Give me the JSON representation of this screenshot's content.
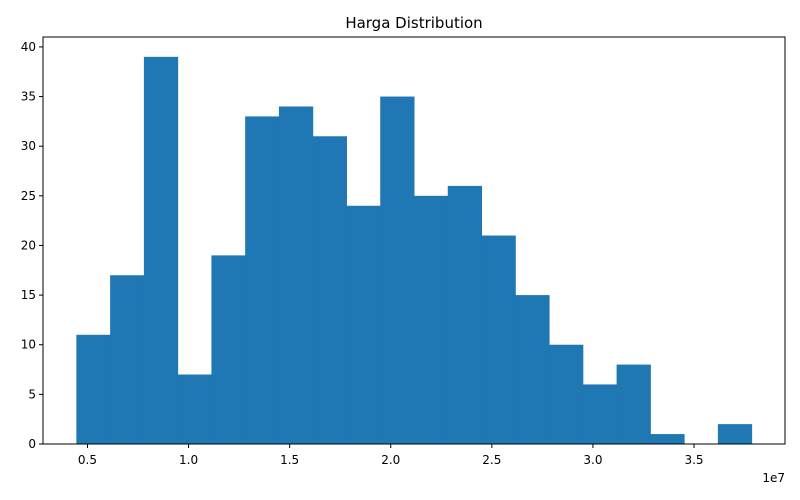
{
  "chart_data": {
    "type": "bar",
    "title": "Harga Distribution",
    "xlabel": "",
    "ylabel": "",
    "bar_color": "#1f77b4",
    "x_offset_label": "1e7",
    "bin_edges": [
      4450000,
      6120000,
      7790000,
      9460000,
      11130000,
      12800000,
      14470000,
      16140000,
      17810000,
      19480000,
      21150000,
      22820000,
      24490000,
      26160000,
      27830000,
      29500000,
      31170000,
      32840000,
      34510000,
      36180000,
      37850000
    ],
    "values": [
      11,
      17,
      39,
      7,
      19,
      33,
      34,
      31,
      24,
      35,
      25,
      26,
      21,
      15,
      10,
      6,
      8,
      1,
      0,
      2
    ],
    "xlim": [
      2800000,
      39500000
    ],
    "ylim": [
      0,
      41
    ],
    "x_ticks": [
      5000000,
      10000000,
      15000000,
      20000000,
      25000000,
      30000000,
      35000000
    ],
    "x_tick_labels": [
      "0.5",
      "1.0",
      "1.5",
      "2.0",
      "2.5",
      "3.0",
      "3.5"
    ],
    "y_ticks": [
      0,
      5,
      10,
      15,
      20,
      25,
      30,
      35,
      40
    ],
    "y_tick_labels": [
      "0",
      "5",
      "10",
      "15",
      "20",
      "25",
      "30",
      "35",
      "40"
    ],
    "grid": false,
    "legend": "none"
  }
}
